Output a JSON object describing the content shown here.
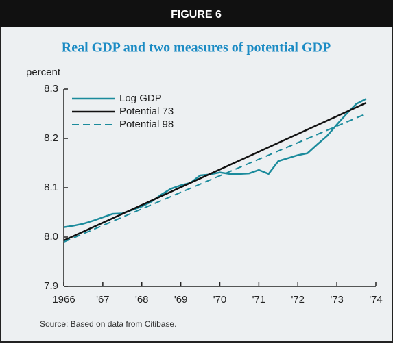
{
  "chart_data": {
    "type": "line",
    "figure_label": "FIGURE 6",
    "title": "Real GDP and two measures of potential GDP",
    "y_label": "percent",
    "source": "Source: Based on data from Citibase.",
    "xlim": [
      1966,
      1974
    ],
    "xticks": [
      1966,
      {
        "value": 1967,
        "label": "'67"
      },
      {
        "value": 1968,
        "label": "'68"
      },
      {
        "value": 1969,
        "label": "'69"
      },
      {
        "value": 1970,
        "label": "'70"
      },
      {
        "value": 1971,
        "label": "'71"
      },
      {
        "value": 1972,
        "label": "'72"
      },
      {
        "value": 1973,
        "label": "'73"
      },
      {
        "value": 1974,
        "label": "'74"
      }
    ],
    "ylim": [
      7.9,
      8.3
    ],
    "yticks": [
      {
        "value": 7.9,
        "label": "7.9"
      },
      {
        "value": 8.0,
        "label": "8.0"
      },
      {
        "value": 8.1,
        "label": "8.1"
      },
      {
        "value": 8.2,
        "label": "8.2"
      },
      {
        "value": 8.3,
        "label": "8.3"
      }
    ],
    "legend": "upper left",
    "series": [
      {
        "name": "Log GDP",
        "color": "#1b8b9c",
        "dash": false,
        "x": [
          1966,
          1966.25,
          1966.5,
          1966.75,
          1967,
          1967.25,
          1967.5,
          1967.75,
          1968,
          1968.25,
          1968.5,
          1968.75,
          1969,
          1969.25,
          1969.5,
          1969.75,
          1970,
          1970.25,
          1970.5,
          1970.75,
          1971,
          1971.25,
          1971.5,
          1971.75,
          1972,
          1972.25,
          1972.5,
          1972.75,
          1973,
          1973.25,
          1973.5,
          1973.75
        ],
        "values": [
          8.02,
          8.023,
          8.027,
          8.033,
          8.04,
          8.047,
          8.048,
          8.055,
          8.062,
          8.072,
          8.086,
          8.098,
          8.105,
          8.11,
          8.125,
          8.127,
          8.131,
          8.128,
          8.128,
          8.129,
          8.136,
          8.128,
          8.154,
          8.16,
          8.166,
          8.17,
          8.188,
          8.205,
          8.228,
          8.25,
          8.27,
          8.28
        ]
      },
      {
        "name": "Potential 73",
        "color": "#111111",
        "dash": false,
        "x": [
          1966,
          1973.75
        ],
        "values": [
          7.993,
          8.272
        ]
      },
      {
        "name": "Potential 98",
        "color": "#1b8b9c",
        "dash": true,
        "x": [
          1966,
          1973.75
        ],
        "values": [
          7.99,
          8.25
        ]
      }
    ]
  }
}
